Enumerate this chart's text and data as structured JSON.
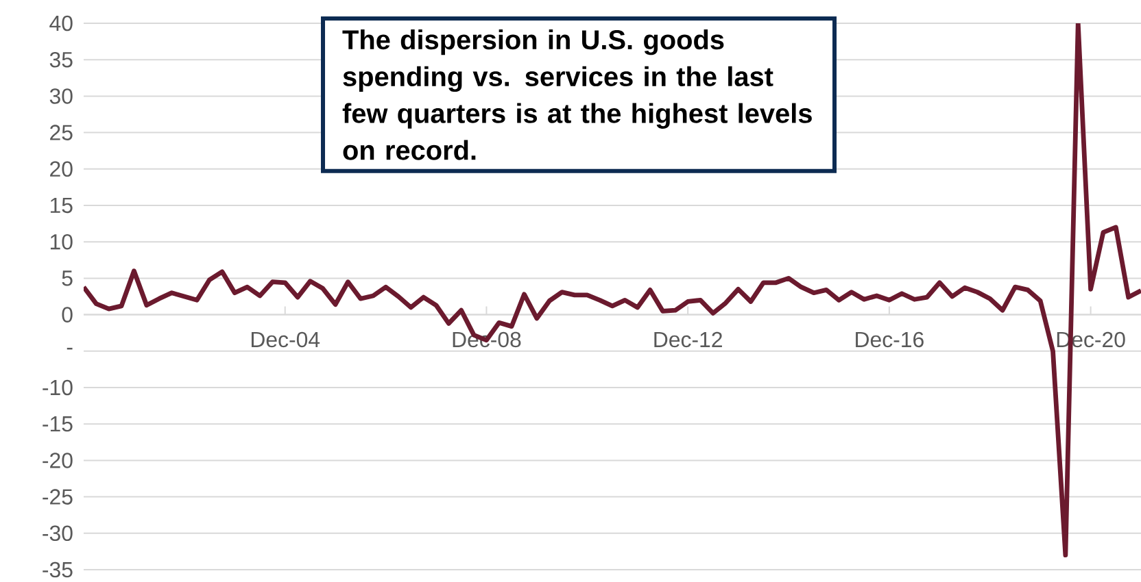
{
  "chart_data": {
    "type": "line",
    "categories": [
      null,
      null,
      null,
      null,
      null,
      null,
      null,
      null,
      null,
      null,
      null,
      null,
      null,
      null,
      null,
      null,
      "Dec-04",
      null,
      null,
      null,
      null,
      null,
      null,
      null,
      null,
      null,
      null,
      null,
      null,
      null,
      null,
      null,
      "Dec-08",
      null,
      null,
      null,
      null,
      null,
      null,
      null,
      null,
      null,
      null,
      null,
      null,
      null,
      null,
      null,
      "Dec-12",
      null,
      null,
      null,
      null,
      null,
      null,
      null,
      null,
      null,
      null,
      null,
      null,
      null,
      null,
      null,
      "Dec-16",
      null,
      null,
      null,
      null,
      null,
      null,
      null,
      null,
      null,
      null,
      null,
      null,
      null,
      null,
      null,
      "Dec-20",
      null,
      null,
      null,
      null
    ],
    "series": [
      {
        "color": "#6b1a2e",
        "values": [
          3.8,
          1.5,
          0.8,
          1.2,
          6,
          1.3,
          2.2,
          3,
          2.5,
          2,
          4.8,
          5.9,
          3,
          3.8,
          2.6,
          4.5,
          4.4,
          2.4,
          4.6,
          3.6,
          1.4,
          4.5,
          2.2,
          2.6,
          3.8,
          2.5,
          1,
          2.4,
          1.3,
          -1.2,
          0.6,
          -2.8,
          -3.5,
          -1.1,
          -1.6,
          2.8,
          -0.5,
          1.9,
          3.1,
          2.7,
          2.7,
          2,
          1.2,
          2,
          1,
          3.4,
          0.5,
          0.6,
          1.8,
          2,
          0.2,
          1.6,
          3.5,
          1.8,
          4.4,
          4.4,
          5,
          3.8,
          3,
          3.4,
          2,
          3.1,
          2.1,
          2.6,
          2,
          2.9,
          2.1,
          2.4,
          4.4,
          2.5,
          3.7,
          3.1,
          2.2,
          0.6,
          3.8,
          3.4,
          1.9,
          -5,
          -33,
          40,
          3.5,
          11.3,
          12,
          2.4,
          3.3
        ]
      }
    ],
    "ylim": [
      -35,
      40
    ],
    "yticks": [
      40,
      35,
      30,
      25,
      20,
      15,
      10,
      5,
      0,
      {
        "value": -5,
        "label": "-"
      },
      -10,
      -15,
      -20,
      -25,
      -30,
      -35
    ],
    "grid": "y",
    "annotations": [
      "**The dispersion in U.S. goods spending vs. services in the last few quarters is at the highest levels on record.**"
    ]
  }
}
